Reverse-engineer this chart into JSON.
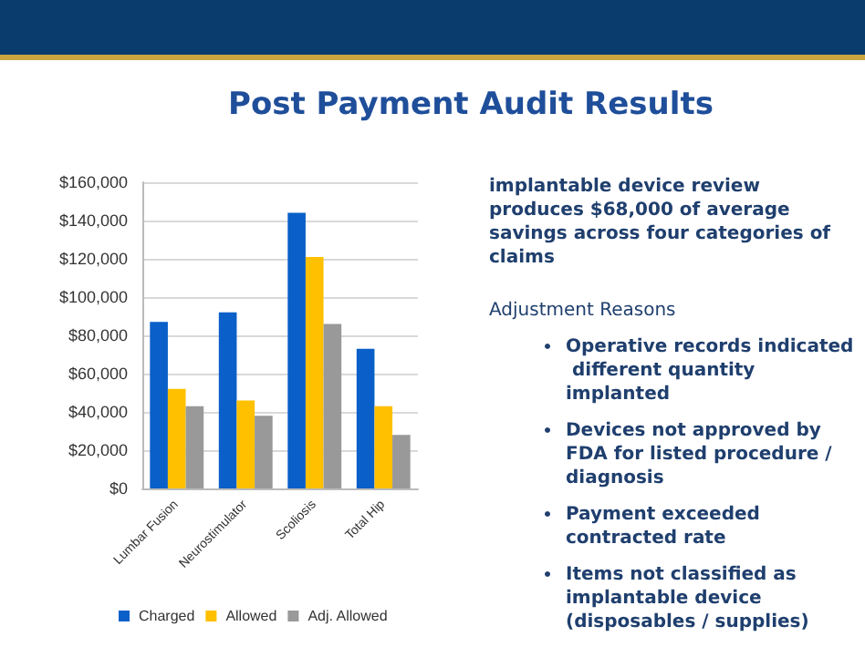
{
  "chart_data": {
    "type": "bar",
    "title": "Post Payment Audit Results",
    "categories": [
      "Lumbar Fusion",
      "Neurostimulator",
      "Scoliosis",
      "Total Hip"
    ],
    "series": [
      {
        "name": "Charged",
        "color": "#0a5fc8",
        "values": [
          87000,
          92000,
          144000,
          73000
        ]
      },
      {
        "name": "Allowed",
        "color": "#ffc000",
        "values": [
          52000,
          46000,
          121000,
          43000
        ]
      },
      {
        "name": "Adj. Allowed",
        "color": "#999999",
        "values": [
          43000,
          38000,
          86000,
          28000
        ]
      }
    ],
    "ylim": [
      0,
      160000
    ],
    "yticks": [
      {
        "value": 0,
        "label": "$0"
      },
      {
        "value": 20000,
        "label": "$20,000"
      },
      {
        "value": 40000,
        "label": "$40,000"
      },
      {
        "value": 60000,
        "label": "$60,000"
      },
      {
        "value": 80000,
        "label": "$80,000"
      },
      {
        "value": 100000,
        "label": "$100,000"
      },
      {
        "value": 120000,
        "label": "$120,000"
      },
      {
        "value": 140000,
        "label": "$140,000"
      },
      {
        "value": 160000,
        "label": "$160,000"
      }
    ],
    "grid": "y",
    "legend": "bottom",
    "annotations": [
      "implantable device review produces $68,000 of average savings across four categories of claims",
      "Adjustment Reasons",
      "Operative records indicated different quantity implanted",
      "Devices not approved by FDA for listed procedure / diagnosis",
      "Payment exceeded contracted rate",
      "Items not classified as implantable device (disposables / supplies)"
    ]
  }
}
